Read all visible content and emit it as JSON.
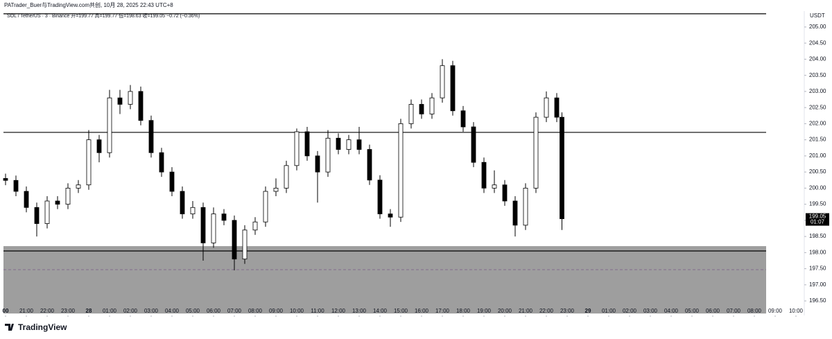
{
  "header": "PATrader_Buer与TradingView.com共创, 10月 28, 2025 22:43 UTC+8",
  "chart_data": {
    "type": "candlestick",
    "legend": "SOL / TetherUS · 3 · Binance  开=199.77 高=199.77 低=198.63 收=199.05 −0.72 (−0.36%)",
    "currency": "USDT",
    "brand": "TradingView",
    "countdown": "01:07",
    "last_price": 199.05,
    "up_color": "#ffffff",
    "down_color": "#000000",
    "outline_color": "#000000",
    "zone_color": "#9e9e9e",
    "hlines": [
      205.41,
      201.73,
      198.05
    ],
    "zone": [
      196.11,
      198.2
    ],
    "zone_mid": 197.47,
    "xlim": [
      -0.1,
      38.4
    ],
    "ylim": [
      196.05,
      205.45
    ],
    "candles": [
      [
        0,
        200.3,
        200.45,
        200.09,
        200.24
      ],
      [
        0.5,
        200.24,
        200.39,
        199.75,
        199.9
      ],
      [
        1,
        199.9,
        200.05,
        199.25,
        199.4
      ],
      [
        1.5,
        199.4,
        199.55,
        198.5,
        198.9
      ],
      [
        2,
        198.9,
        199.75,
        198.75,
        199.6
      ],
      [
        2.5,
        199.6,
        199.75,
        199.35,
        199.5
      ],
      [
        3,
        199.5,
        200.15,
        199.35,
        200.0
      ],
      [
        3.5,
        200.0,
        200.25,
        199.85,
        200.1
      ],
      [
        4,
        200.1,
        201.8,
        199.95,
        201.5
      ],
      [
        4.5,
        201.5,
        201.65,
        200.8,
        201.1
      ],
      [
        5,
        201.1,
        203.05,
        200.95,
        202.8
      ],
      [
        5.5,
        202.8,
        203.05,
        202.3,
        202.6
      ],
      [
        6,
        202.6,
        203.2,
        202.45,
        203.0
      ],
      [
        6.5,
        203.0,
        203.15,
        201.95,
        202.1
      ],
      [
        7,
        202.1,
        202.25,
        200.95,
        201.1
      ],
      [
        7.5,
        201.1,
        201.25,
        200.35,
        200.5
      ],
      [
        8,
        200.5,
        200.65,
        199.75,
        199.9
      ],
      [
        8.5,
        199.9,
        200.05,
        199.05,
        199.2
      ],
      [
        9,
        199.2,
        199.6,
        199.05,
        199.4
      ],
      [
        9.5,
        199.4,
        199.55,
        197.75,
        198.3
      ],
      [
        10,
        198.3,
        199.4,
        198.15,
        199.2
      ],
      [
        10.5,
        199.2,
        199.35,
        198.85,
        199.0
      ],
      [
        11,
        199.0,
        199.15,
        197.45,
        197.8
      ],
      [
        11.5,
        197.8,
        198.85,
        197.65,
        198.7
      ],
      [
        12,
        198.7,
        199.1,
        198.55,
        198.95
      ],
      [
        12.5,
        198.95,
        200.05,
        198.8,
        199.9
      ],
      [
        13,
        199.9,
        200.3,
        199.75,
        200.0
      ],
      [
        13.5,
        200.0,
        200.85,
        199.85,
        200.7
      ],
      [
        14,
        200.7,
        201.85,
        200.55,
        201.75
      ],
      [
        14.5,
        201.75,
        201.9,
        200.85,
        201.0
      ],
      [
        15,
        201.0,
        201.15,
        199.55,
        200.5
      ],
      [
        15.5,
        200.5,
        201.8,
        200.35,
        201.55
      ],
      [
        16,
        201.55,
        201.7,
        201.05,
        201.2
      ],
      [
        16.5,
        201.2,
        201.65,
        201.05,
        201.5
      ],
      [
        17,
        201.5,
        201.9,
        201.05,
        201.2
      ],
      [
        17.5,
        201.2,
        201.35,
        200.1,
        200.25
      ],
      [
        18,
        200.25,
        200.4,
        199.05,
        199.2
      ],
      [
        18.5,
        199.2,
        199.35,
        198.8,
        199.1
      ],
      [
        19,
        199.1,
        202.15,
        198.95,
        202.0
      ],
      [
        19.5,
        202.0,
        202.75,
        201.85,
        202.6
      ],
      [
        20,
        202.6,
        202.75,
        202.15,
        202.3
      ],
      [
        20.5,
        202.3,
        202.95,
        202.15,
        202.8
      ],
      [
        21,
        202.8,
        204.0,
        202.65,
        203.8
      ],
      [
        21.5,
        203.8,
        203.95,
        202.25,
        202.4
      ],
      [
        22,
        202.4,
        202.55,
        201.75,
        201.9
      ],
      [
        22.5,
        201.9,
        202.05,
        200.65,
        200.8
      ],
      [
        23,
        200.8,
        200.95,
        199.85,
        200.0
      ],
      [
        23.5,
        200.0,
        200.55,
        199.85,
        200.1
      ],
      [
        24,
        200.1,
        200.25,
        199.45,
        199.6
      ],
      [
        24.5,
        199.6,
        199.75,
        198.5,
        198.85
      ],
      [
        25,
        198.85,
        200.15,
        198.7,
        200.0
      ],
      [
        25.5,
        200.0,
        202.35,
        199.85,
        202.2
      ],
      [
        26,
        202.2,
        203.0,
        202.05,
        202.8
      ],
      [
        26.5,
        202.8,
        202.95,
        202.05,
        202.2
      ],
      [
        26.75,
        202.2,
        202.35,
        198.7,
        199.05
      ]
    ],
    "yticks": [
      {
        "value": 196.5,
        "label": "196.50"
      },
      {
        "value": 197,
        "label": "197.00"
      },
      {
        "value": 197.5,
        "label": "197.50"
      },
      {
        "value": 198,
        "label": "198.00"
      },
      {
        "value": 198.5,
        "label": "198.50"
      },
      {
        "value": 199,
        "label": "199.00"
      },
      {
        "value": 199.5,
        "label": "199.50"
      },
      {
        "value": 200,
        "label": "200.00"
      },
      {
        "value": 200.5,
        "label": "200.50"
      },
      {
        "value": 201,
        "label": "201.00"
      },
      {
        "value": 201.5,
        "label": "201.50"
      },
      {
        "value": 202,
        "label": "202.00"
      },
      {
        "value": 202.5,
        "label": "202.50"
      },
      {
        "value": 203,
        "label": "203.00"
      },
      {
        "value": 203.5,
        "label": "203.50"
      },
      {
        "value": 204,
        "label": "204.00"
      },
      {
        "value": 204.5,
        "label": "204.50"
      },
      {
        "value": 205,
        "label": "205.00"
      }
    ],
    "xticks": [
      {
        "value": 0,
        "label": "00"
      },
      {
        "value": 1,
        "label": "21:00"
      },
      {
        "value": 2,
        "label": "22:00"
      },
      {
        "value": 3,
        "label": "23:00"
      },
      {
        "value": 4,
        "label": "28"
      },
      {
        "value": 5,
        "label": "01:00"
      },
      {
        "value": 6,
        "label": "02:00"
      },
      {
        "value": 7,
        "label": "03:00"
      },
      {
        "value": 8,
        "label": "04:00"
      },
      {
        "value": 9,
        "label": "05:00"
      },
      {
        "value": 10,
        "label": "06:00"
      },
      {
        "value": 11,
        "label": "07:00"
      },
      {
        "value": 12,
        "label": "08:00"
      },
      {
        "value": 13,
        "label": "09:00"
      },
      {
        "value": 14,
        "label": "10:00"
      },
      {
        "value": 15,
        "label": "11:00"
      },
      {
        "value": 16,
        "label": "12:00"
      },
      {
        "value": 17,
        "label": "13:00"
      },
      {
        "value": 18,
        "label": "14:00"
      },
      {
        "value": 19,
        "label": "15:00"
      },
      {
        "value": 20,
        "label": "16:00"
      },
      {
        "value": 21,
        "label": "17:00"
      },
      {
        "value": 22,
        "label": "18:00"
      },
      {
        "value": 23,
        "label": "19:00"
      },
      {
        "value": 24,
        "label": "20:00"
      },
      {
        "value": 25,
        "label": "21:00"
      },
      {
        "value": 26,
        "label": "22:00"
      },
      {
        "value": 27,
        "label": "23:00"
      },
      {
        "value": 28,
        "label": "29"
      },
      {
        "value": 29,
        "label": "01:00"
      },
      {
        "value": 30,
        "label": "02:00"
      },
      {
        "value": 31,
        "label": "03:00"
      },
      {
        "value": 32,
        "label": "04:00"
      },
      {
        "value": 33,
        "label": "05:00"
      },
      {
        "value": 34,
        "label": "06:00"
      },
      {
        "value": 35,
        "label": "07:00"
      },
      {
        "value": 36,
        "label": "08:00"
      },
      {
        "value": 37,
        "label": "09:00"
      },
      {
        "value": 38,
        "label": "10:00"
      }
    ]
  }
}
